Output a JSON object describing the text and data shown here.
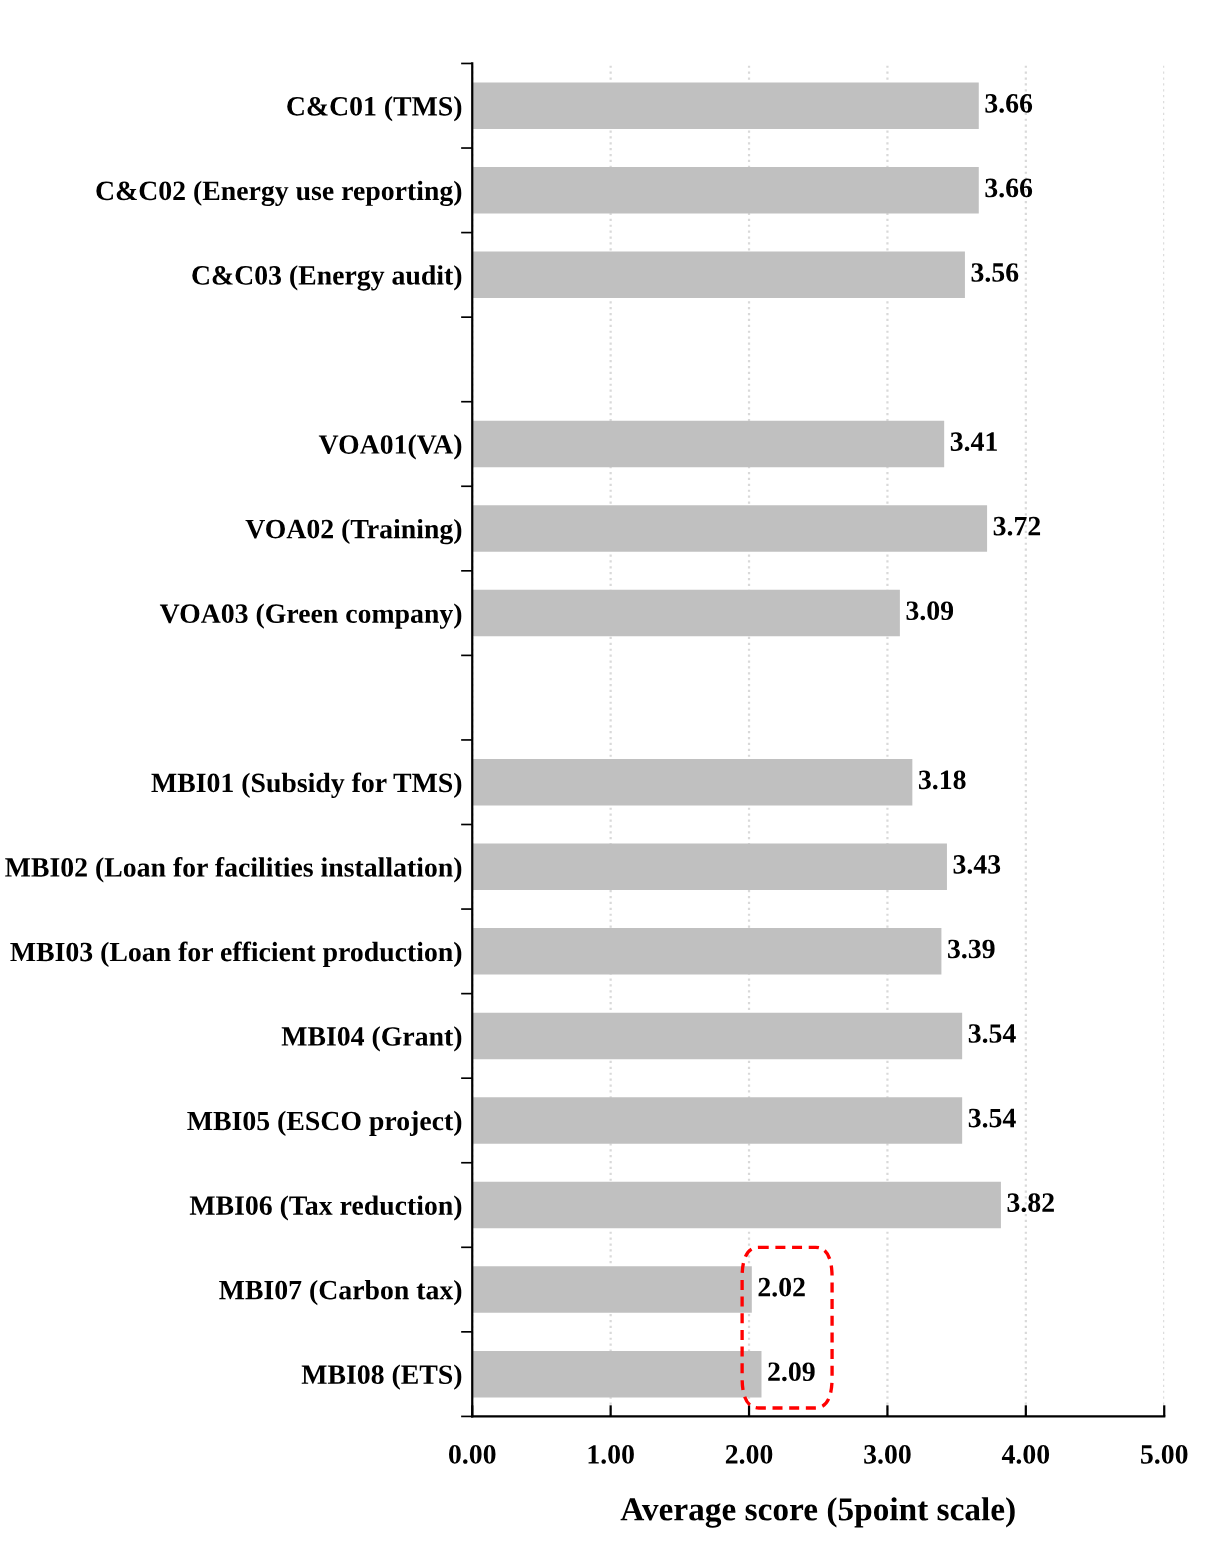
{
  "chart_data": {
    "type": "bar",
    "orientation": "horizontal",
    "xlabel": "Average score (5point scale)",
    "categories": [
      "C&C01 (TMS)",
      "C&C02 (Energy use reporting)",
      "C&C03 (Energy audit)",
      null,
      "VOA01(VA)",
      "VOA02 (Training)",
      "VOA03 (Green company)",
      null,
      "MBI01 (Subsidy for TMS)",
      "MBI02 (Loan for facilities installation)",
      "MBI03 (Loan for efficient production)",
      "MBI04 (Grant)",
      "MBI05 (ESCO project)",
      "MBI06 (Tax reduction)",
      "MBI07 (Carbon tax)",
      "MBI08 (ETS)"
    ],
    "values": [
      3.66,
      3.66,
      3.56,
      null,
      3.41,
      3.72,
      3.09,
      null,
      3.18,
      3.43,
      3.39,
      3.54,
      3.54,
      3.82,
      2.02,
      2.09
    ],
    "color": "#c0c0c0",
    "xlim": [
      0,
      5
    ],
    "xticks": [
      {
        "value": 0,
        "label": "0.00"
      },
      {
        "value": 1,
        "label": "1.00"
      },
      {
        "value": 2,
        "label": "2.00"
      },
      {
        "value": 3,
        "label": "3.00"
      },
      {
        "value": 4,
        "label": "4.00"
      },
      {
        "value": 5,
        "label": "5.00"
      }
    ],
    "grid": "x",
    "data_labels": true
  }
}
